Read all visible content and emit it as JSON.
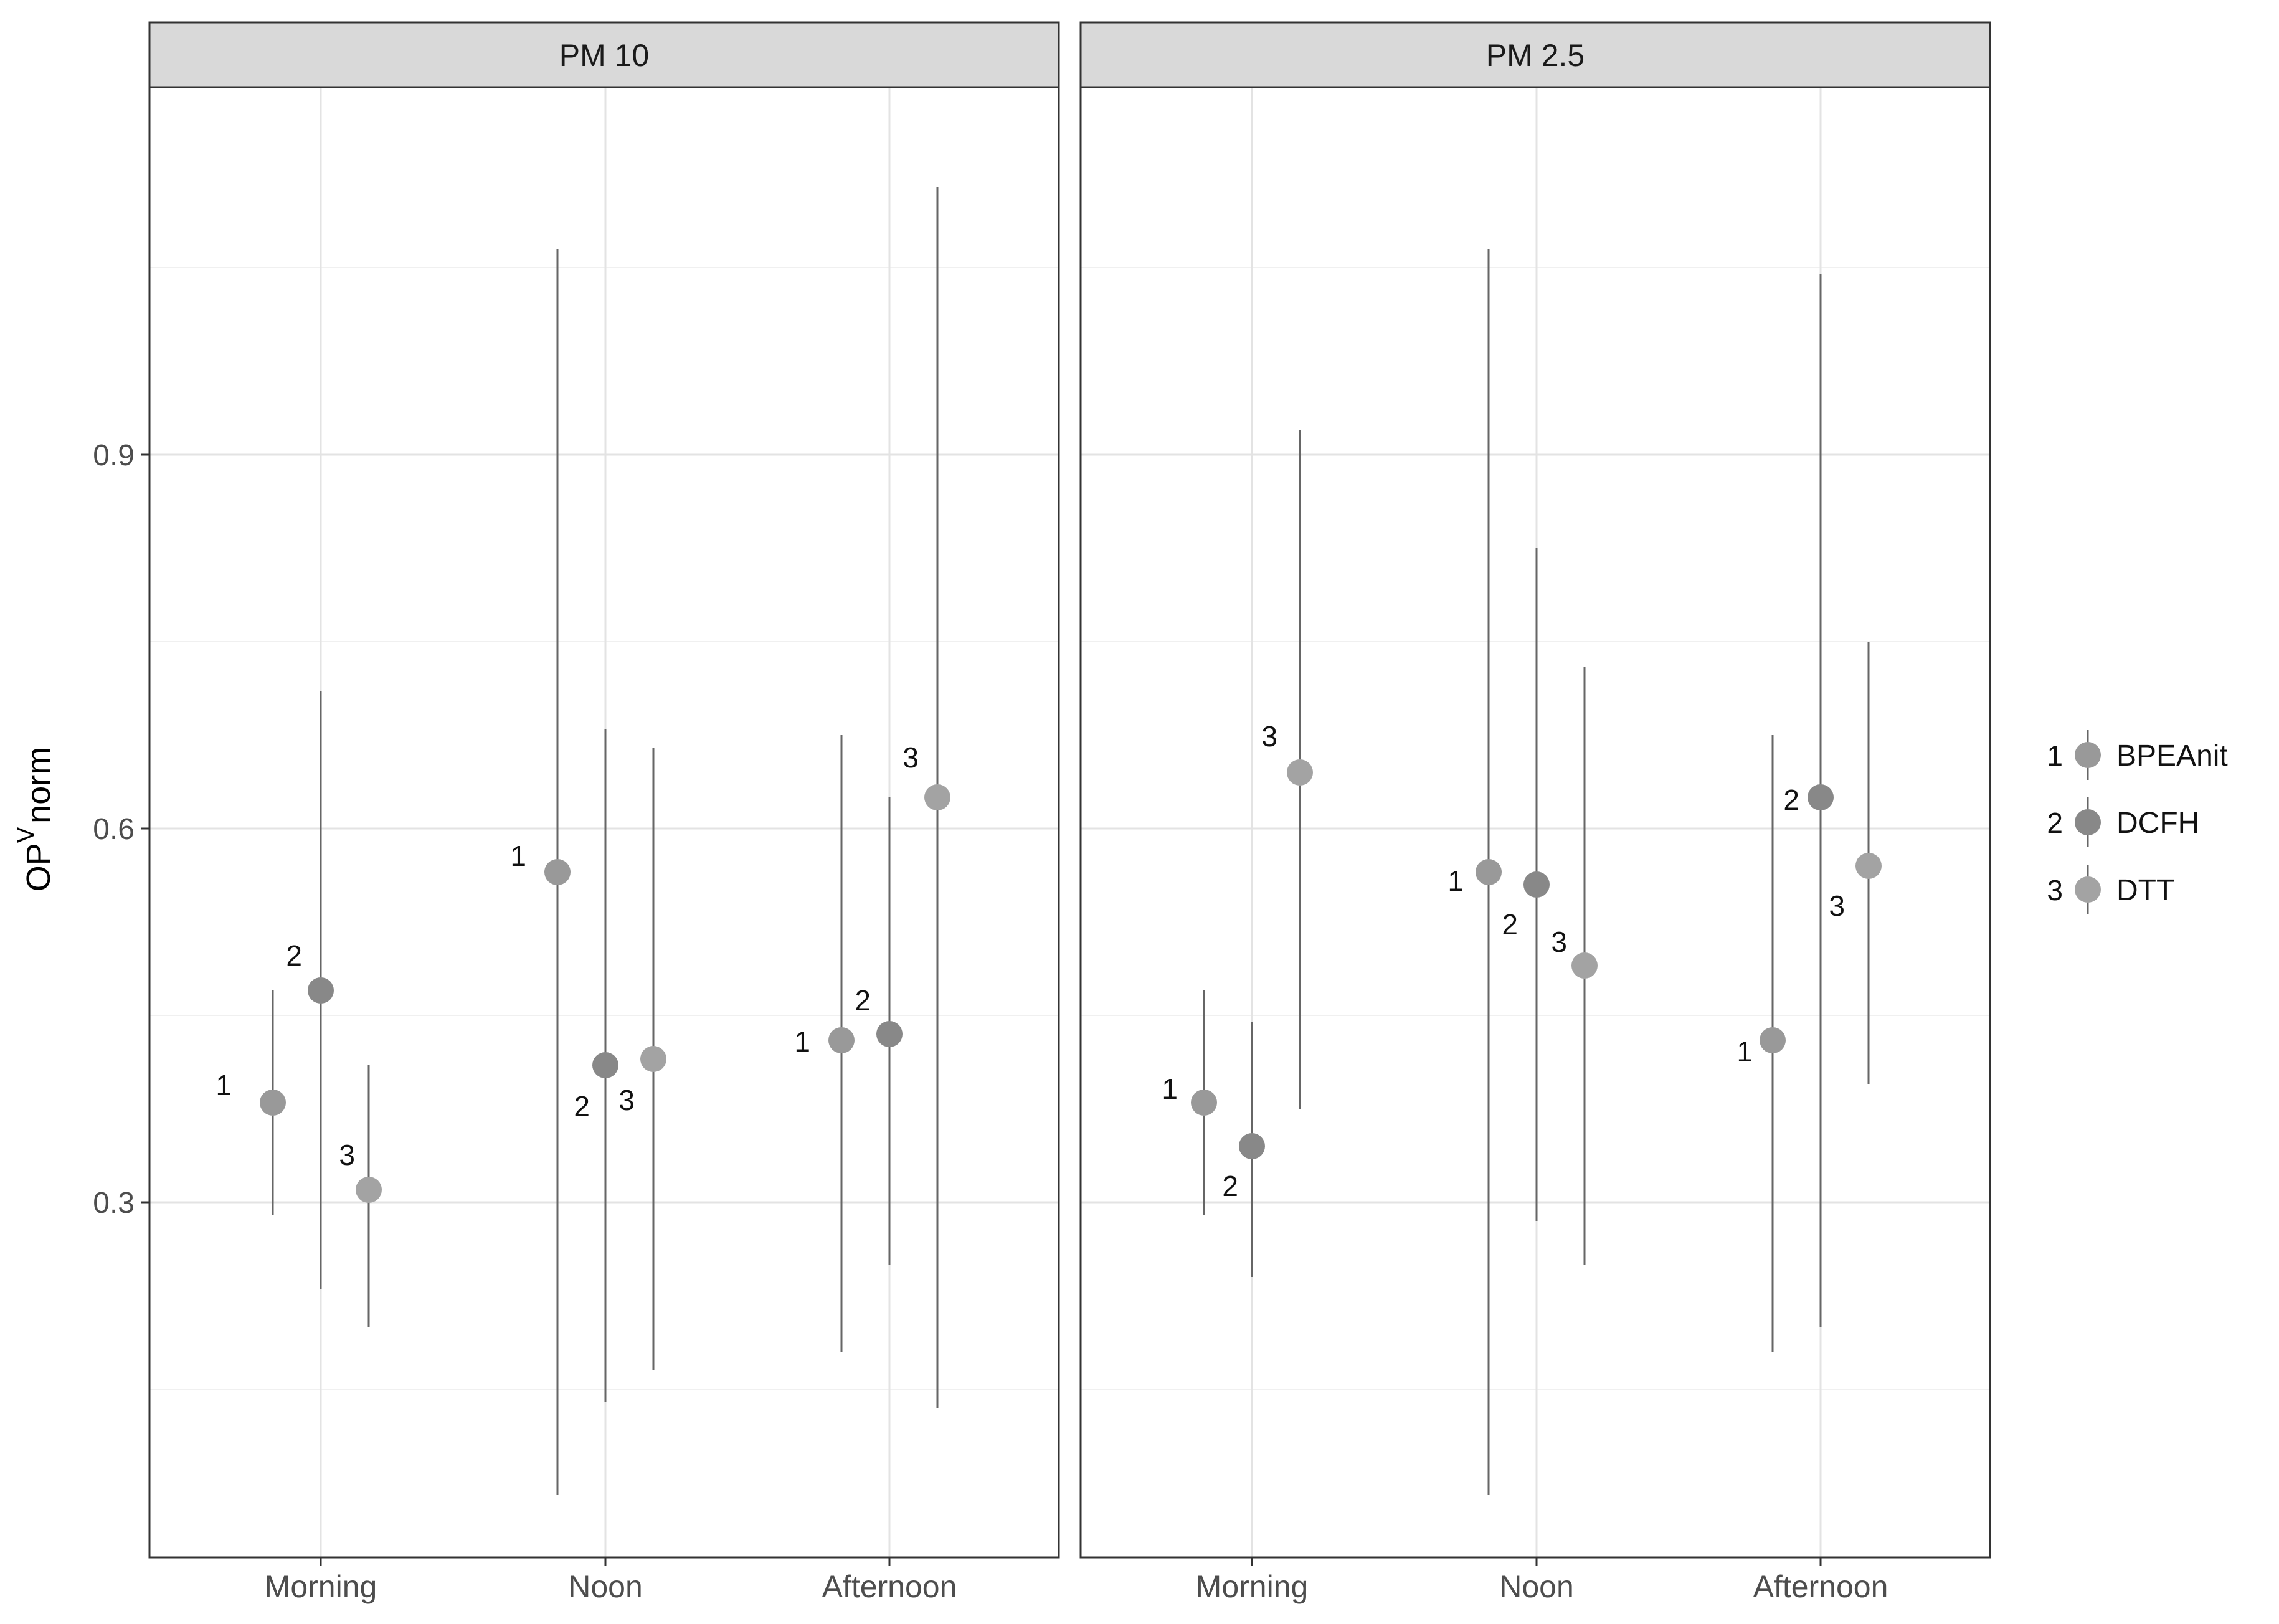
{
  "chart_data": {
    "type": "pointrange",
    "ylabel_main": "OP",
    "ylabel_sup": "V",
    "ylabel_sub": "norm",
    "xlabel": "",
    "categories": [
      "Morning",
      "Noon",
      "Afternoon"
    ],
    "ylim": [
      0.015,
      1.195
    ],
    "yticks": [
      0.3,
      0.6,
      0.9
    ],
    "ytick_labels": [
      "0.3",
      "0.6",
      "0.9"
    ],
    "yminor": [
      0.15,
      0.45,
      0.75,
      1.05
    ],
    "grid": true,
    "legend_position": "right",
    "legend": [
      {
        "key": "1",
        "name": "BPEAnit",
        "color": "#999999"
      },
      {
        "key": "2",
        "name": "DCFH",
        "color": "#888888"
      },
      {
        "key": "3",
        "name": "DTT",
        "color": "#a3a3a3"
      }
    ],
    "panels": [
      {
        "title": "PM 10",
        "points": [
          {
            "category": "Morning",
            "series": "1",
            "y": 0.38,
            "ymin": 0.29,
            "ymax": 0.47
          },
          {
            "category": "Morning",
            "series": "2",
            "y": 0.47,
            "ymin": 0.23,
            "ymax": 0.71
          },
          {
            "category": "Morning",
            "series": "3",
            "y": 0.31,
            "ymin": 0.2,
            "ymax": 0.41
          },
          {
            "category": "Noon",
            "series": "1",
            "y": 0.565,
            "ymin": 0.065,
            "ymax": 1.065
          },
          {
            "category": "Noon",
            "series": "2",
            "y": 0.41,
            "ymin": 0.14,
            "ymax": 0.68
          },
          {
            "category": "Noon",
            "series": "3",
            "y": 0.415,
            "ymin": 0.165,
            "ymax": 0.665
          },
          {
            "category": "Afternoon",
            "series": "1",
            "y": 0.43,
            "ymin": 0.18,
            "ymax": 0.675
          },
          {
            "category": "Afternoon",
            "series": "2",
            "y": 0.435,
            "ymin": 0.25,
            "ymax": 0.625
          },
          {
            "category": "Afternoon",
            "series": "3",
            "y": 0.625,
            "ymin": 0.135,
            "ymax": 1.115
          }
        ]
      },
      {
        "title": "PM 2.5",
        "points": [
          {
            "category": "Morning",
            "series": "1",
            "y": 0.38,
            "ymin": 0.29,
            "ymax": 0.47
          },
          {
            "category": "Morning",
            "series": "2",
            "y": 0.345,
            "ymin": 0.24,
            "ymax": 0.445
          },
          {
            "category": "Morning",
            "series": "3",
            "y": 0.645,
            "ymin": 0.375,
            "ymax": 0.92
          },
          {
            "category": "Noon",
            "series": "1",
            "y": 0.565,
            "ymin": 0.065,
            "ymax": 1.065
          },
          {
            "category": "Noon",
            "series": "2",
            "y": 0.555,
            "ymin": 0.285,
            "ymax": 0.825
          },
          {
            "category": "Noon",
            "series": "3",
            "y": 0.49,
            "ymin": 0.25,
            "ymax": 0.73
          },
          {
            "category": "Afternoon",
            "series": "1",
            "y": 0.43,
            "ymin": 0.18,
            "ymax": 0.675
          },
          {
            "category": "Afternoon",
            "series": "2",
            "y": 0.625,
            "ymin": 0.2,
            "ymax": 1.045
          },
          {
            "category": "Afternoon",
            "series": "3",
            "y": 0.57,
            "ymin": 0.395,
            "ymax": 0.75
          }
        ]
      }
    ]
  }
}
